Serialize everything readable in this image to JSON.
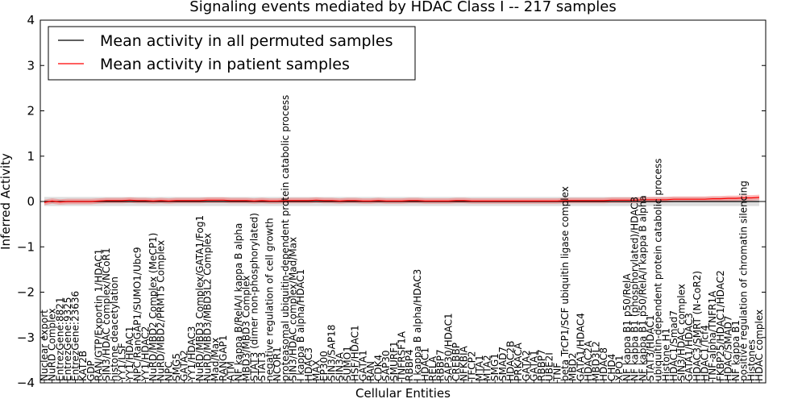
{
  "chart_data": {
    "type": "line",
    "title": "Signaling events mediated by HDAC Class I -- 217 samples",
    "xlabel": "Cellular Entities",
    "ylabel": "Inferred Activity",
    "ylim": [
      -4,
      4
    ],
    "yticks": [
      "4",
      "3",
      "2",
      "1",
      "0",
      "−1",
      "−2",
      "−3",
      "−4"
    ],
    "legend": {
      "location": "top-left",
      "entries": [
        {
          "label": "Mean activity in all permuted samples",
          "color": "#000000"
        },
        {
          "label": "Mean activity in patient samples",
          "color": "#ff0000"
        }
      ]
    },
    "categories": [
      "Nuclear export",
      "NuRD Complex",
      "EntrezGene:8821",
      "EntrezGene:9325",
      "EntrezGene:23636",
      "KAT2B",
      "GDP",
      "RAN/GTP/Exportin 1/HDAC1",
      "SIN3/HDAC complex/NCoR1",
      "histone deacetylation",
      "YY1/LSF",
      "YY1/HDAC1",
      "NPC/RanGAP1/SUMO1/Ubc9",
      "YY1/HDAC2",
      "NuRD/MBD2 Complex (MeCP1)",
      "NuRD/MBD2/PRMT5 Complex",
      "NPC",
      "SMG5",
      "GATA2",
      "YY1/HDAC3",
      "NuRD/MBD3 Complex/GATA1/Fog1",
      "NuRD/MBD3/MBD3L2 Complex",
      "Mad/Max",
      "RANGAP1",
      "ATM",
      "NF kappa B/RelA/I kappa B alpha",
      "MBD3/MBD3 Complex",
      "STAT3 (dimer non-phosphorylated)",
      "STAT3",
      "negative regulation of cell growth",
      "NCOR1",
      "proteasomal ubiquitin-dependent protein catabolic process",
      "SIN3/HDAC complex/Mad/Max",
      "I kappa B alpha/HDAC1",
      "HDAC3",
      "MAX",
      "EP300",
      "SIN3/SAP18",
      "SIN3A",
      "SUMO1",
      "HSF/HDAC1",
      "GATA1",
      "RAN",
      "CDK4",
      "SAP30",
      "SMURF1",
      "TNFRSF1A",
      "RBBP4",
      "I kappa B alpha/HDAC3",
      "HDAC1",
      "RELA",
      "RBBP7",
      "SAP30/HDAC1",
      "CREBBP",
      "NFKBIA",
      "TFCP2",
      "MTA1",
      "MTA2",
      "SMG1",
      "SMAD7",
      "HDAC2B",
      "PRKACA",
      "GATA2",
      "GATA1",
      "RBBP7",
      "UBE2I",
      "TNF",
      "beta TrCP1/SCF ubiquitin ligase complex",
      "MBD2",
      "GATA1/HDAC4",
      "HDAC2A",
      "MBD3L2",
      "HDAC8",
      "CHD4",
      "XPO1",
      "NF kappa B1 p50/RelA",
      "NF kappa B1 (phosphorylated)/HDAC3",
      "NF kappa B1 p50/RelA/I kappa B alpha",
      "STAT3/HDAC1",
      "ubiquitin-dependent protein catabolic process",
      "Histone H1",
      "HDAC1/Smad7",
      "SIN3/HDAC complex",
      "GATA1/HDAC3",
      "HDAC3/SMRT (N-CoR2)",
      "HDAC1/Tcf4",
      "TNF-alpha/TNFR1A",
      "FKBP25/HDAC1/HDAC2",
      "HDAC/SMAD7",
      "NF kappa B1",
      "positive regulation of chromatin silencing",
      "Histones",
      "HDAC complex"
    ],
    "series": [
      {
        "name": "Mean activity in all permuted samples",
        "color": "#000000",
        "values": [
          0.0,
          0.0,
          0.0,
          0.0,
          0.0,
          0.0,
          0.0,
          0.0,
          0.0,
          0.0,
          0.0,
          0.0,
          0.0,
          0.0,
          0.0,
          0.0,
          0.0,
          0.0,
          0.0,
          0.0,
          0.0,
          0.0,
          0.0,
          0.0,
          0.0,
          0.0,
          0.0,
          0.0,
          0.0,
          0.0,
          0.0,
          0.0,
          0.0,
          0.0,
          0.0,
          0.0,
          0.0,
          0.0,
          0.0,
          0.0,
          0.0,
          0.0,
          0.0,
          0.0,
          0.0,
          0.0,
          0.0,
          0.0,
          0.0,
          0.0,
          0.0,
          0.0,
          0.0,
          0.0,
          0.0,
          0.0,
          0.0,
          0.0,
          0.0,
          0.0,
          0.0,
          0.0,
          0.0,
          0.0,
          0.0,
          0.0,
          0.0,
          0.0,
          0.0,
          0.0,
          0.0,
          0.0,
          0.0,
          0.0,
          0.0,
          0.0,
          0.0,
          0.0,
          0.0,
          0.0,
          0.0,
          0.0,
          0.0,
          0.0,
          0.0,
          0.0,
          0.0,
          0.0,
          0.0,
          0.0,
          0.0,
          0.0,
          0.0
        ]
      },
      {
        "name": "Mean activity in patient samples",
        "color": "#ff0000",
        "values": [
          -0.02,
          0.01,
          -0.01,
          0.0,
          0.0,
          0.0,
          0.0,
          0.01,
          0.02,
          0.02,
          0.02,
          0.03,
          0.02,
          0.02,
          0.01,
          0.02,
          0.01,
          0.02,
          0.02,
          0.02,
          0.02,
          0.03,
          0.03,
          0.03,
          0.02,
          0.02,
          0.02,
          0.01,
          0.02,
          0.01,
          0.01,
          0.02,
          0.02,
          0.02,
          0.02,
          0.03,
          0.02,
          0.02,
          0.01,
          0.02,
          0.02,
          0.01,
          0.01,
          0.02,
          0.01,
          0.01,
          0.01,
          0.02,
          0.02,
          0.01,
          0.01,
          0.01,
          0.01,
          0.02,
          0.02,
          0.01,
          0.01,
          0.01,
          0.01,
          0.01,
          0.01,
          0.01,
          0.01,
          0.01,
          0.01,
          0.01,
          0.01,
          0.02,
          0.02,
          0.02,
          0.02,
          0.02,
          0.02,
          0.03,
          0.03,
          0.03,
          0.03,
          0.04,
          0.04,
          0.04,
          0.04,
          0.05,
          0.05,
          0.05,
          0.05,
          0.05,
          0.06,
          0.06,
          0.07,
          0.07,
          0.08,
          0.08,
          0.09
        ]
      }
    ]
  }
}
